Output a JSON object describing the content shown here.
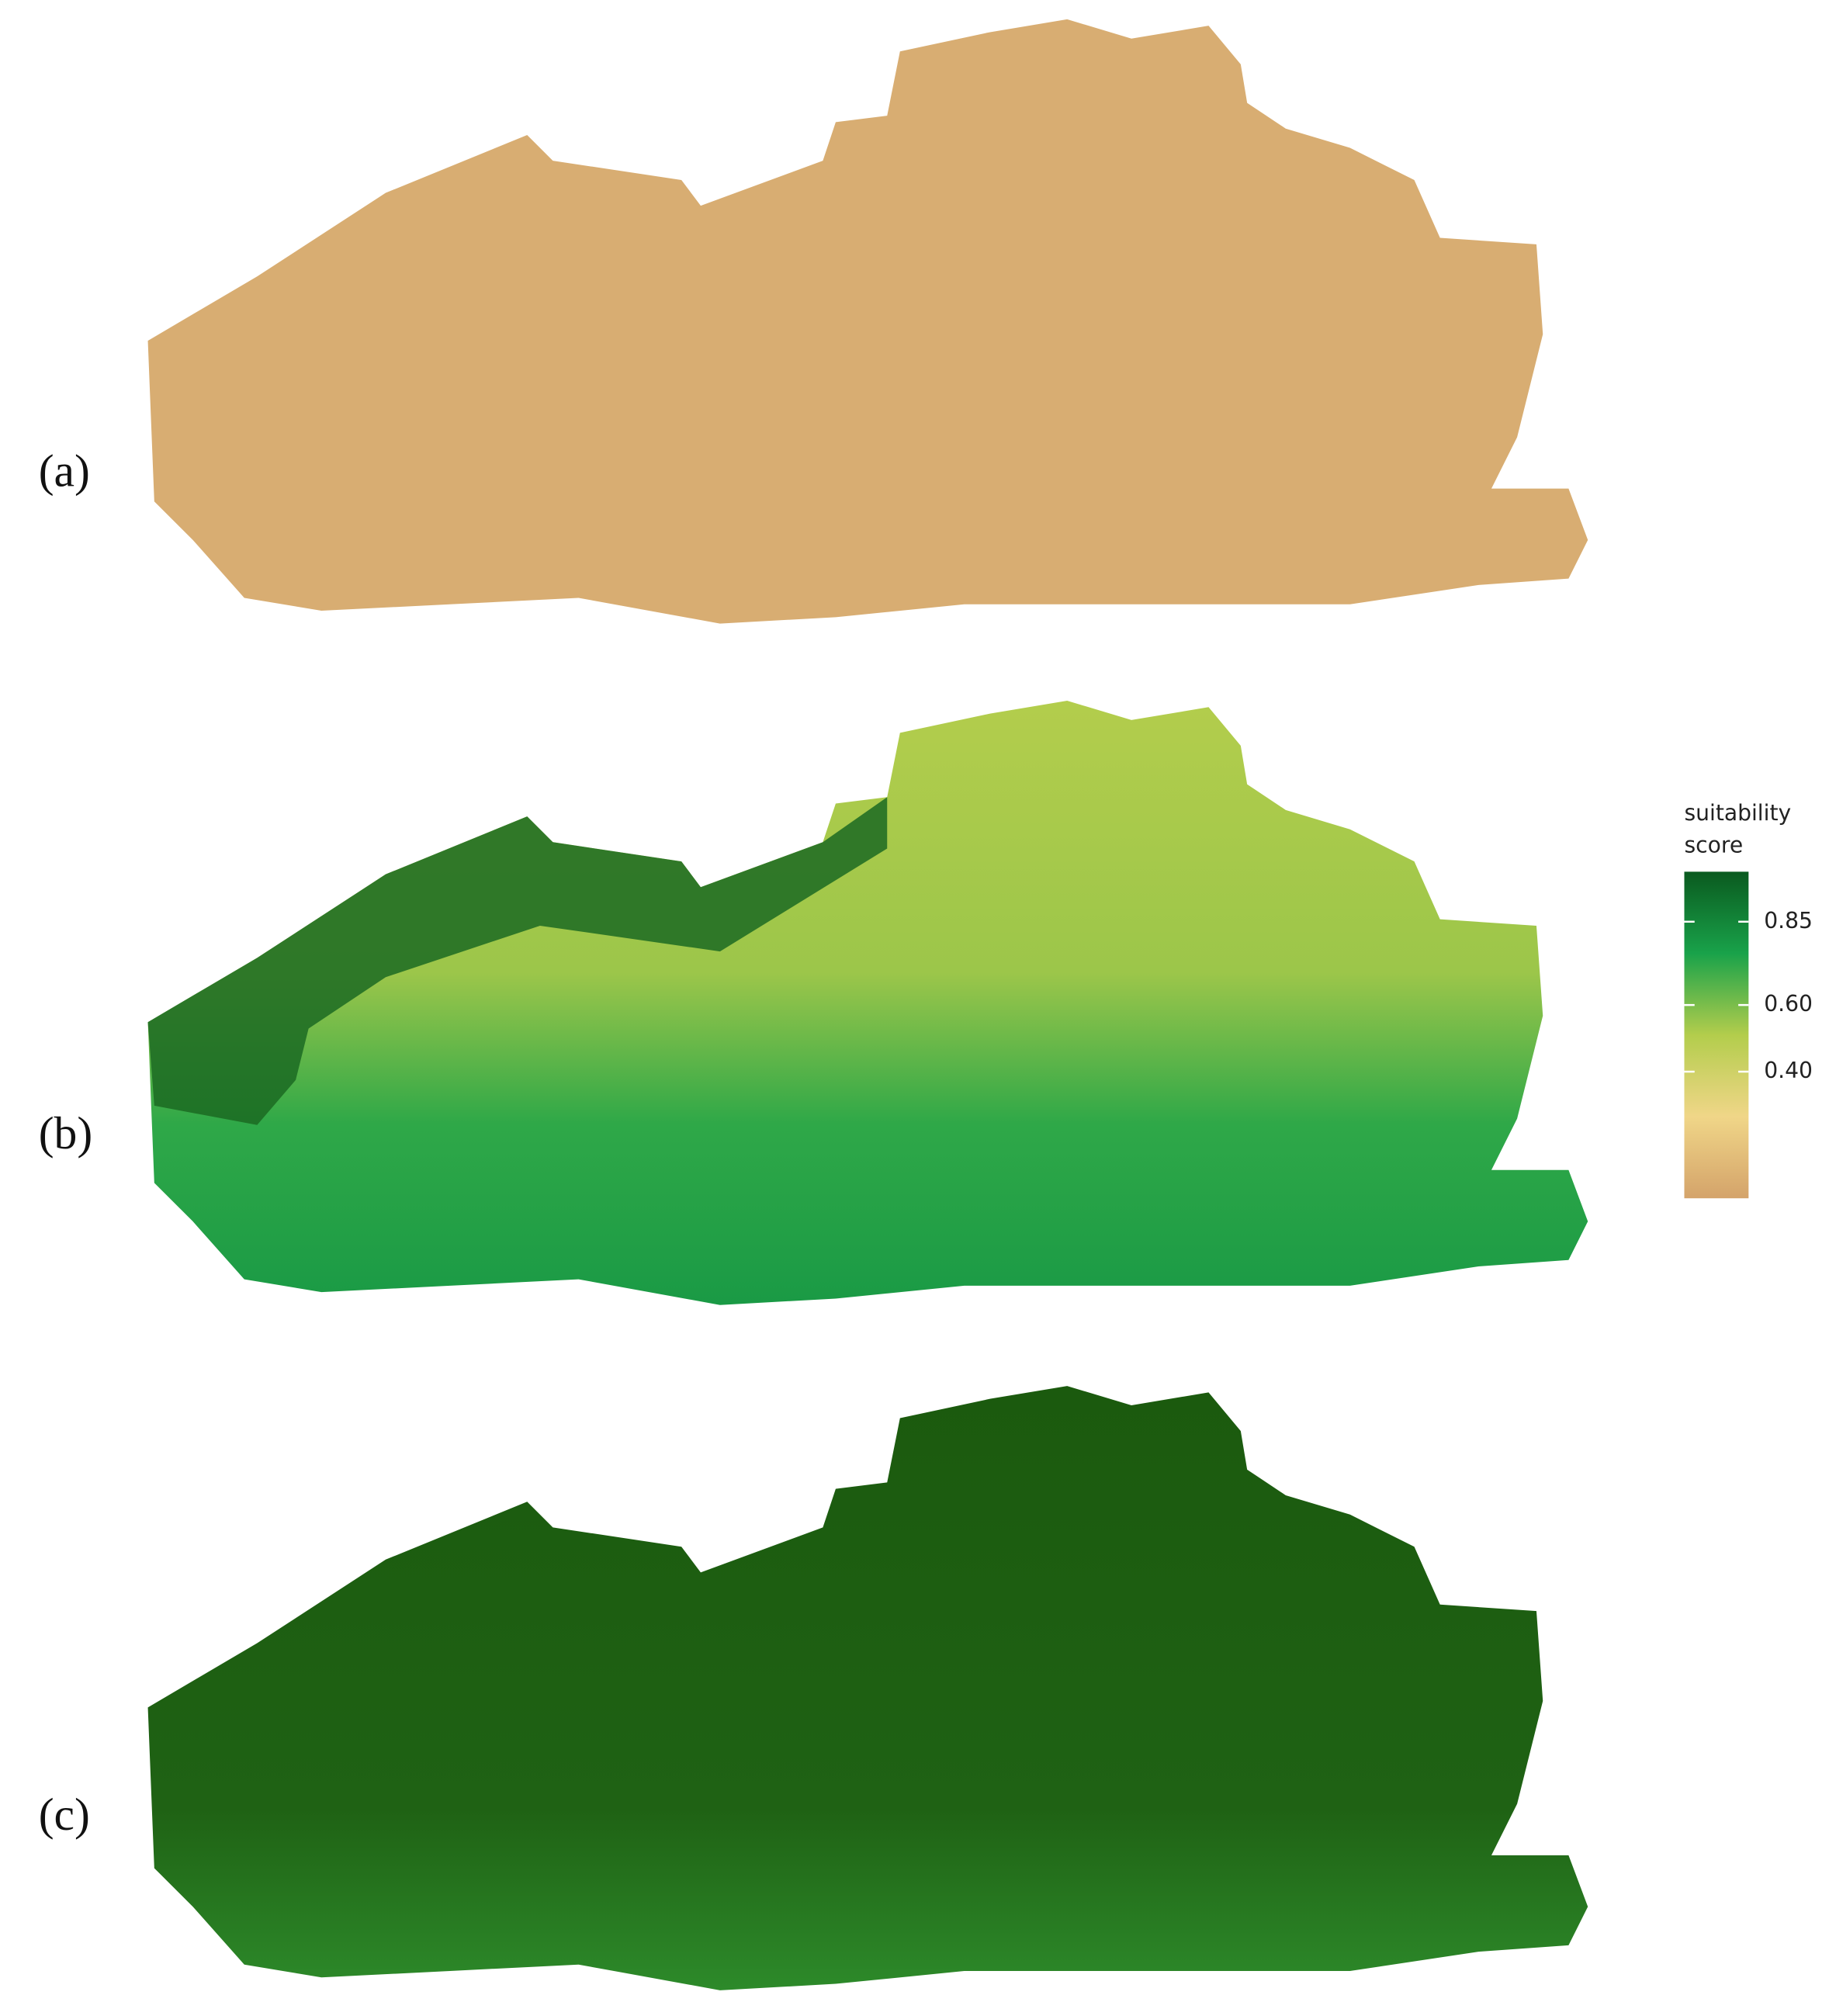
{
  "panels": [
    {
      "label": "(a)"
    },
    {
      "label": "(b)"
    },
    {
      "label": "(c)"
    }
  ],
  "legend": {
    "title_lines": [
      "suitability",
      "score"
    ],
    "colors": [
      "#d4a36a",
      "#f0d688",
      "#b3cd4c",
      "#19a24a",
      "#0a5a1f"
    ],
    "lim": [
      0.02,
      1.0
    ],
    "ticks": [
      0.85,
      {
        "value": 0.6,
        "label": "0.60"
      },
      {
        "value": 0.4,
        "label": "0.40"
      }
    ]
  }
}
